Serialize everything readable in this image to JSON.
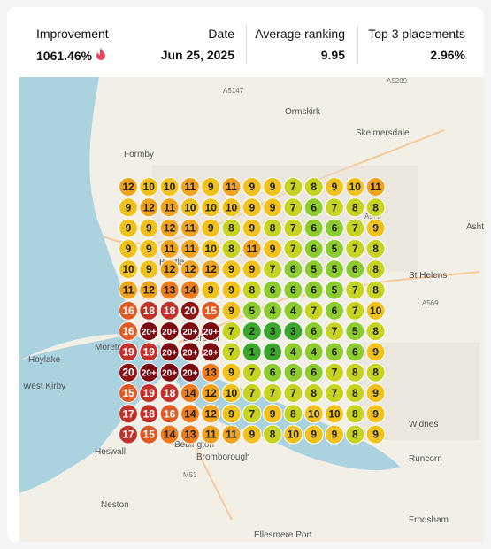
{
  "header": {
    "stats": [
      {
        "label": "Improvement",
        "value": "1061.46%"
      },
      {
        "label": "Date",
        "value": "Jun 25, 2025"
      },
      {
        "label": "Average ranking",
        "value": "9.95"
      },
      {
        "label": "Top 3 placements",
        "value": "2.96%"
      }
    ]
  },
  "map": {
    "places": [
      "Formby",
      "Ormskirk",
      "Skelmersdale",
      "Moreton",
      "Hoylake",
      "West Kirby",
      "Heswall",
      "Neston",
      "Bootle",
      "Liverpool",
      "Bebington",
      "Bromborough",
      "St Helens",
      "Widnes",
      "Runcorn",
      "Frodsham",
      "Ellesmere Port",
      "Ashto"
    ],
    "roads": [
      "A5147",
      "A5209",
      "A570",
      "A569",
      "M53"
    ],
    "grid": [
      [
        12,
        10,
        10,
        11,
        9,
        11,
        9,
        9,
        7,
        8,
        9,
        10,
        11
      ],
      [
        9,
        12,
        11,
        10,
        10,
        10,
        9,
        9,
        7,
        6,
        7,
        8,
        8
      ],
      [
        9,
        9,
        12,
        11,
        9,
        8,
        9,
        8,
        7,
        6,
        6,
        7,
        9
      ],
      [
        9,
        9,
        11,
        11,
        10,
        8,
        11,
        9,
        7,
        6,
        5,
        7,
        8
      ],
      [
        10,
        9,
        12,
        12,
        12,
        9,
        9,
        7,
        6,
        5,
        5,
        6,
        8
      ],
      [
        11,
        12,
        13,
        14,
        9,
        9,
        8,
        6,
        6,
        6,
        5,
        7,
        8
      ],
      [
        16,
        18,
        18,
        20,
        15,
        9,
        5,
        4,
        4,
        7,
        6,
        7,
        10
      ],
      [
        16,
        "20+",
        "20+",
        "20+",
        "20+",
        7,
        2,
        3,
        3,
        6,
        7,
        5,
        8
      ],
      [
        19,
        19,
        "20+",
        "20+",
        "20+",
        7,
        1,
        2,
        4,
        4,
        6,
        6,
        9
      ],
      [
        20,
        "20+",
        "20+",
        "20+",
        13,
        9,
        7,
        6,
        6,
        6,
        7,
        8,
        8
      ],
      [
        15,
        19,
        18,
        14,
        12,
        10,
        7,
        7,
        7,
        8,
        7,
        8,
        9
      ],
      [
        17,
        18,
        16,
        14,
        12,
        9,
        7,
        9,
        8,
        10,
        10,
        8,
        9
      ],
      [
        17,
        15,
        14,
        13,
        11,
        11,
        9,
        8,
        10,
        9,
        9,
        8,
        9
      ]
    ]
  }
}
